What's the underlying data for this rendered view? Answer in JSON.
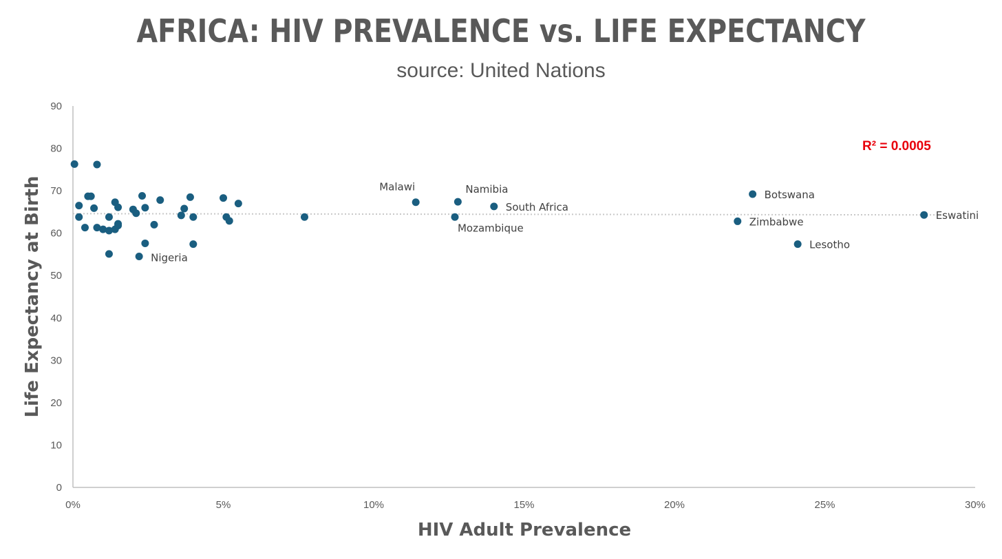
{
  "chart_data": {
    "type": "scatter",
    "title": "AFRICA: HIV PREVALENCE vs. LIFE EXPECTANCY",
    "subtitle": "source: United Nations",
    "xlabel": "HIV Adult Prevalence",
    "ylabel": "Life Expectancy at Birth",
    "xlim": [
      0,
      0.3
    ],
    "ylim": [
      0,
      90
    ],
    "x_ticks": [
      {
        "value": 0,
        "label": "0%"
      },
      {
        "value": 0.05,
        "label": "5%"
      },
      {
        "value": 0.1,
        "label": "10%"
      },
      {
        "value": 0.15,
        "label": "15%"
      },
      {
        "value": 0.2,
        "label": "20%"
      },
      {
        "value": 0.25,
        "label": "25%"
      },
      {
        "value": 0.3,
        "label": "30%"
      }
    ],
    "y_ticks": [
      {
        "value": 0,
        "label": "0"
      },
      {
        "value": 10,
        "label": "10"
      },
      {
        "value": 20,
        "label": "20"
      },
      {
        "value": 30,
        "label": "30"
      },
      {
        "value": 40,
        "label": "40"
      },
      {
        "value": 50,
        "label": "50"
      },
      {
        "value": 60,
        "label": "60"
      },
      {
        "value": 70,
        "label": "70"
      },
      {
        "value": 80,
        "label": "80"
      },
      {
        "value": 90,
        "label": "90"
      }
    ],
    "grid": false,
    "marker_color": "#1a5e80",
    "trendline": {
      "type": "linear",
      "y_start": 64.6,
      "y_end": 64.3,
      "color": "#c8c8c8",
      "style": "dotted"
    },
    "annotation": {
      "text": "R² = 0.0005",
      "color": "#e8000b"
    },
    "points": [
      {
        "x": 0.0005,
        "y": 76.3
      },
      {
        "x": 0.008,
        "y": 76.2
      },
      {
        "x": 0.002,
        "y": 66.5
      },
      {
        "x": 0.002,
        "y": 63.8
      },
      {
        "x": 0.004,
        "y": 61.3
      },
      {
        "x": 0.005,
        "y": 68.7
      },
      {
        "x": 0.006,
        "y": 68.7
      },
      {
        "x": 0.007,
        "y": 65.9
      },
      {
        "x": 0.008,
        "y": 61.3
      },
      {
        "x": 0.01,
        "y": 60.9
      },
      {
        "x": 0.012,
        "y": 60.6
      },
      {
        "x": 0.012,
        "y": 63.8
      },
      {
        "x": 0.012,
        "y": 55.1
      },
      {
        "x": 0.014,
        "y": 67.3
      },
      {
        "x": 0.014,
        "y": 60.9
      },
      {
        "x": 0.015,
        "y": 66.1
      },
      {
        "x": 0.015,
        "y": 62.2
      },
      {
        "x": 0.015,
        "y": 61.8
      },
      {
        "x": 0.02,
        "y": 65.6
      },
      {
        "x": 0.021,
        "y": 64.7
      },
      {
        "x": 0.022,
        "y": 54.5,
        "label": "Nigeria"
      },
      {
        "x": 0.023,
        "y": 68.8
      },
      {
        "x": 0.024,
        "y": 66.0
      },
      {
        "x": 0.024,
        "y": 57.6
      },
      {
        "x": 0.027,
        "y": 62.0
      },
      {
        "x": 0.029,
        "y": 67.8
      },
      {
        "x": 0.036,
        "y": 64.2
      },
      {
        "x": 0.037,
        "y": 65.8
      },
      {
        "x": 0.039,
        "y": 68.5
      },
      {
        "x": 0.04,
        "y": 63.8
      },
      {
        "x": 0.04,
        "y": 57.4
      },
      {
        "x": 0.05,
        "y": 68.3
      },
      {
        "x": 0.051,
        "y": 63.8
      },
      {
        "x": 0.052,
        "y": 62.9
      },
      {
        "x": 0.055,
        "y": 67.0
      },
      {
        "x": 0.077,
        "y": 63.8
      },
      {
        "x": 0.114,
        "y": 67.3,
        "label": "Malawi"
      },
      {
        "x": 0.127,
        "y": 63.8,
        "label": "Mozambique"
      },
      {
        "x": 0.128,
        "y": 67.4,
        "label": "Namibia"
      },
      {
        "x": 0.14,
        "y": 66.3,
        "label": "South Africa"
      },
      {
        "x": 0.221,
        "y": 62.8,
        "label": "Zimbabwe"
      },
      {
        "x": 0.226,
        "y": 69.2,
        "label": "Botswana"
      },
      {
        "x": 0.241,
        "y": 57.4,
        "label": "Lesotho"
      },
      {
        "x": 0.283,
        "y": 64.3,
        "label": "Eswatini"
      }
    ]
  }
}
